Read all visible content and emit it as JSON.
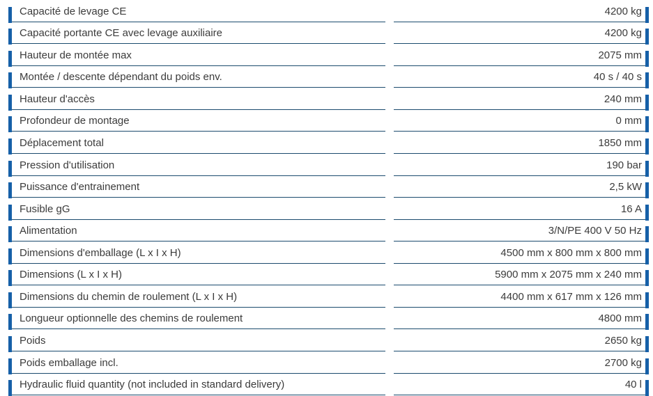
{
  "colors": {
    "accent_bar": "#1660a8",
    "divider_line": "#1a4a6d",
    "text": "#3b3b3b",
    "background": "#ffffff"
  },
  "spec_table": {
    "rows": [
      {
        "label": "Capacité de levage CE",
        "value": "4200 kg"
      },
      {
        "label": "Capacité portante CE avec levage auxiliaire",
        "value": "4200 kg"
      },
      {
        "label": "Hauteur de montée max",
        "value": "2075 mm"
      },
      {
        "label": "Montée / descente dépendant du poids env.",
        "value": "40 s / 40 s"
      },
      {
        "label": "Hauteur d'accès",
        "value": "240 mm"
      },
      {
        "label": "Profondeur de montage",
        "value": "0 mm"
      },
      {
        "label": "Déplacement total",
        "value": "1850 mm"
      },
      {
        "label": "Pression d'utilisation",
        "value": "190 bar"
      },
      {
        "label": "Puissance d'entrainement",
        "value": "2,5 kW"
      },
      {
        "label": "Fusible gG",
        "value": "16 A"
      },
      {
        "label": "Alimentation",
        "value": "3/N/PE 400 V 50 Hz"
      },
      {
        "label": "Dimensions d'emballage (L x I x H)",
        "value": "4500 mm x 800 mm x 800 mm"
      },
      {
        "label": "Dimensions (L x I x H)",
        "value": "5900 mm x 2075 mm x 240 mm"
      },
      {
        "label": "Dimensions du chemin de roulement (L x I x H)",
        "value": "4400 mm x 617 mm x 126 mm"
      },
      {
        "label": "Longueur optionnelle des chemins de roulement",
        "value": "4800 mm"
      },
      {
        "label": "Poids",
        "value": "2650 kg"
      },
      {
        "label": "Poids emballage incl.",
        "value": "2700 kg"
      },
      {
        "label": "Hydraulic fluid quantity (not included in standard delivery)",
        "value": "40 l"
      }
    ]
  }
}
